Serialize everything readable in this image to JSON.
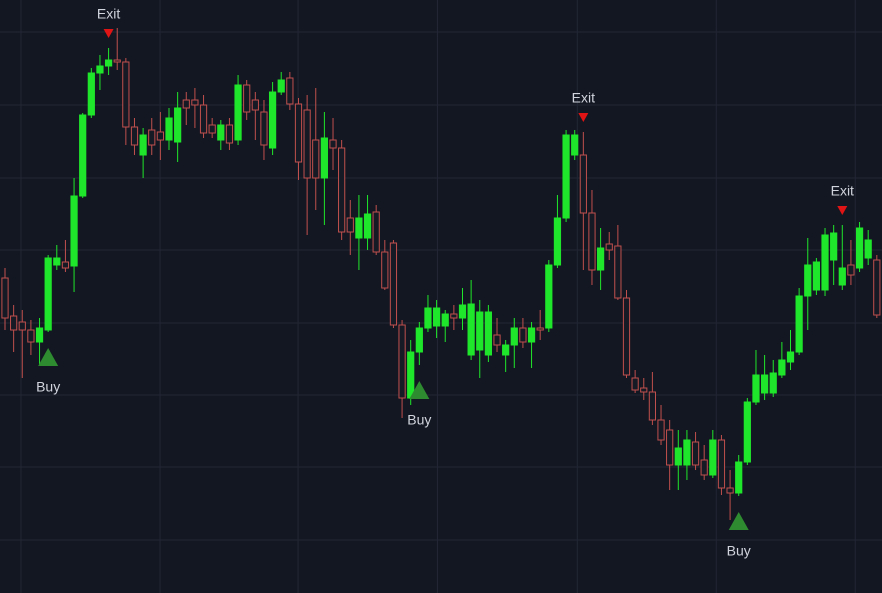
{
  "chart_data": {
    "type": "candlestick",
    "open": [
      315,
      277,
      271,
      263,
      251,
      263,
      328,
      331,
      327,
      397,
      478,
      520,
      527,
      533,
      531,
      466,
      438,
      463,
      461,
      453,
      451,
      493,
      493,
      488,
      468,
      453,
      468,
      453,
      508,
      493,
      481,
      445,
      501,
      515,
      489,
      483,
      453,
      415,
      453,
      445,
      375,
      355,
      355,
      381,
      341,
      350,
      268,
      195,
      241,
      265,
      267,
      267,
      279,
      275,
      238,
      243,
      238,
      258,
      238,
      248,
      265,
      251,
      265,
      265,
      328,
      375,
      438,
      438,
      380,
      323,
      349,
      347,
      295,
      215,
      205,
      201,
      173,
      163,
      128,
      128,
      151,
      133,
      118,
      153,
      105,
      100,
      131,
      191,
      200,
      200,
      218,
      231,
      241,
      297,
      303,
      303,
      333,
      308,
      328,
      325,
      335,
      333
    ],
    "high": [
      325,
      288,
      283,
      273,
      275,
      338,
      348,
      353,
      415,
      480,
      525,
      538,
      545,
      565,
      535,
      475,
      465,
      475,
      481,
      485,
      501,
      501,
      505,
      498,
      475,
      473,
      475,
      518,
      513,
      501,
      493,
      511,
      521,
      521,
      495,
      498,
      505,
      481,
      475,
      453,
      393,
      398,
      398,
      388,
      353,
      353,
      273,
      253,
      271,
      298,
      293,
      283,
      288,
      305,
      313,
      293,
      288,
      275,
      253,
      275,
      275,
      271,
      283,
      333,
      398,
      463,
      463,
      461,
      403,
      365,
      361,
      368,
      303,
      223,
      215,
      221,
      188,
      173,
      163,
      163,
      161,
      148,
      163,
      158,
      123,
      138,
      195,
      243,
      238,
      233,
      251,
      263,
      305,
      355,
      335,
      365,
      368,
      368,
      353,
      371,
      363,
      338
    ],
    "low": [
      263,
      241,
      215,
      238,
      228,
      261,
      323,
      321,
      301,
      395,
      475,
      503,
      518,
      523,
      448,
      438,
      415,
      438,
      433,
      443,
      431,
      468,
      465,
      455,
      455,
      443,
      443,
      448,
      473,
      453,
      433,
      438,
      498,
      483,
      413,
      358,
      383,
      368,
      423,
      353,
      338,
      323,
      343,
      338,
      303,
      265,
      175,
      188,
      228,
      261,
      255,
      251,
      263,
      263,
      233,
      215,
      231,
      241,
      221,
      225,
      245,
      225,
      253,
      261,
      325,
      371,
      433,
      323,
      308,
      303,
      333,
      293,
      215,
      200,
      193,
      168,
      148,
      103,
      103,
      113,
      123,
      113,
      115,
      98,
      73,
      97,
      128,
      188,
      193,
      196,
      215,
      223,
      238,
      263,
      298,
      297,
      308,
      303,
      308,
      321,
      328,
      275
    ],
    "close": [
      275,
      263,
      263,
      251,
      265,
      335,
      335,
      325,
      397,
      478,
      520,
      527,
      533,
      531,
      466,
      448,
      458,
      448,
      453,
      475,
      485,
      485,
      488,
      460,
      460,
      468,
      450,
      508,
      481,
      483,
      448,
      501,
      513,
      489,
      431,
      415,
      415,
      455,
      445,
      361,
      361,
      375,
      379,
      341,
      305,
      268,
      195,
      241,
      265,
      285,
      285,
      279,
      275,
      288,
      289,
      281,
      281,
      248,
      248,
      265,
      251,
      265,
      263,
      328,
      375,
      458,
      458,
      380,
      323,
      345,
      343,
      295,
      218,
      203,
      201,
      173,
      153,
      128,
      145,
      153,
      128,
      118,
      153,
      105,
      100,
      131,
      191,
      218,
      218,
      220,
      233,
      241,
      297,
      328,
      331,
      358,
      360,
      325,
      318,
      365,
      353,
      278
    ],
    "up_color": "#1fe62a",
    "down_color": "#c0504d",
    "xlim": [
      -0.58,
      101.6
    ],
    "ylim": [
      0,
      593
    ],
    "xticks": [
      1.85,
      17.96,
      33.95,
      50.1,
      66.3,
      82.4,
      98.5
    ],
    "yticks": [
      561,
      488,
      415,
      343,
      270,
      198,
      126,
      53
    ],
    "grid": true,
    "signals": [
      {
        "label": "Exit",
        "index": 12,
        "position": "above",
        "color": "#e01414"
      },
      {
        "label": "Exit",
        "index": 67,
        "position": "above",
        "color": "#e01414"
      },
      {
        "label": "Exit",
        "index": 97,
        "position": "above",
        "color": "#e01414"
      },
      {
        "label": "Buy",
        "index": 5,
        "position": "below",
        "color": "#2e8b30"
      },
      {
        "label": "Buy",
        "index": 48,
        "position": "below",
        "color": "#2e8b30"
      },
      {
        "label": "Buy",
        "index": 85,
        "position": "below",
        "color": "#2e8b30"
      }
    ]
  }
}
